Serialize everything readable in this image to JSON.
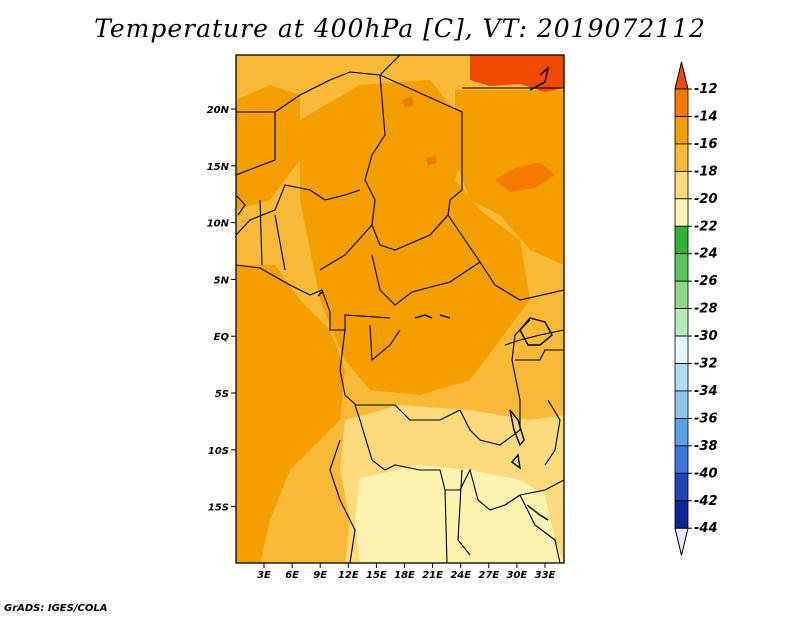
{
  "title": "Temperature at 400hPa [C], VT: 2019072112",
  "footer": "GrADS: IGES/COLA",
  "map": {
    "lat_labels": [
      "20N",
      "15N",
      "10N",
      "5N",
      "EQ",
      "5S",
      "10S",
      "15S"
    ],
    "lon_labels": [
      "3E",
      "6E",
      "9E",
      "12E",
      "15E",
      "18E",
      "21E",
      "24E",
      "27E",
      "30E",
      "33E"
    ]
  },
  "colorbar": {
    "levels": [
      "-12",
      "-14",
      "-16",
      "-18",
      "-20",
      "-22",
      "-24",
      "-26",
      "-28",
      "-30",
      "-32",
      "-34",
      "-36",
      "-38",
      "-40",
      "-42",
      "-44"
    ],
    "colors": [
      "#f04a00",
      "#f27a00",
      "#f59e00",
      "#f8b838",
      "#fcd97a",
      "#fbf3b0",
      "#32b432",
      "#5ac85a",
      "#8ad98a",
      "#b9eab9",
      "#e4f7ff",
      "#b2dcf4",
      "#8cc4ee",
      "#5aa0e2",
      "#3c78dc",
      "#1e46b4",
      "#0a2896",
      "#000a64"
    ]
  }
}
